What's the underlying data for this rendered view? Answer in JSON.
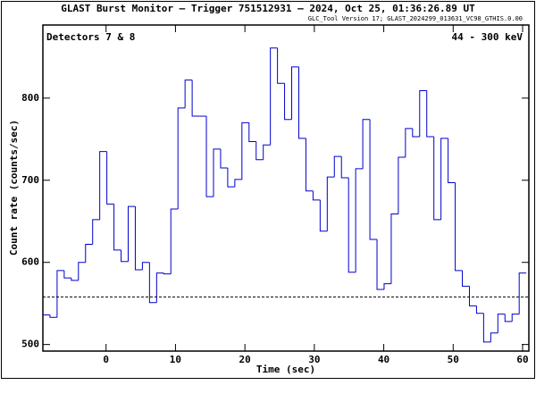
{
  "chart_data": {
    "type": "histogram",
    "title": "GLAST Burst Monitor  –  Trigger 751512931  –  2024, Oct 25, 01:36:26.89 UT",
    "subtitle": "GLC_Tool Version 17; GLAST_2024299_013631_VC98_GTHIS.0.00",
    "annotations": [
      "Detectors 7 & 8",
      "44 - 300 keV"
    ],
    "x_label": "Time (sec)",
    "y_label": "Count rate (counts/sec)",
    "color": "#0000cc",
    "background_color": "#000000",
    "bins": [
      -9.1,
      -8.076,
      -7.052,
      -6.028,
      -5.004,
      -3.98,
      -2.956,
      -1.932,
      -0.908,
      0.116,
      1.14,
      2.164,
      3.188,
      4.212,
      5.236,
      6.26,
      7.284,
      8.308,
      9.332,
      10.356,
      11.38,
      12.404,
      13.428,
      14.452,
      15.476,
      16.5,
      17.524,
      18.548,
      19.572,
      20.596,
      21.62,
      22.644,
      23.668,
      24.692,
      25.716,
      26.74,
      27.764,
      28.788,
      29.812,
      30.836,
      31.86,
      32.884,
      33.908,
      34.932,
      35.956,
      36.98,
      38.004,
      39.028,
      40.052,
      41.076,
      42.1,
      43.124,
      44.148,
      45.172,
      46.196,
      47.22,
      48.244,
      49.268,
      50.292,
      51.316,
      52.34,
      53.364,
      54.388,
      55.412,
      56.436,
      57.46,
      58.484,
      59.508,
      60.532
    ],
    "values": [
      536,
      533,
      590,
      581,
      578,
      600,
      622,
      652,
      735,
      671,
      615,
      601,
      668,
      591,
      600,
      551,
      587,
      586,
      665,
      788,
      822,
      778,
      778,
      680,
      738,
      715,
      692,
      701,
      770,
      747,
      725,
      743,
      861,
      818,
      774,
      838,
      751,
      687,
      676,
      638,
      704,
      729,
      703,
      588,
      714,
      774,
      628,
      567,
      574,
      659,
      728,
      763,
      753,
      809,
      753,
      652,
      751,
      697,
      590,
      571,
      547,
      538,
      503,
      514,
      537,
      528,
      537,
      587
    ],
    "background": 558,
    "xlim": [
      -9.1,
      60.9
    ],
    "xticks": [
      0,
      10,
      20,
      30,
      40,
      50,
      60
    ],
    "ylim": [
      492,
      889
    ],
    "yticks": [
      500,
      600,
      700,
      800
    ]
  }
}
